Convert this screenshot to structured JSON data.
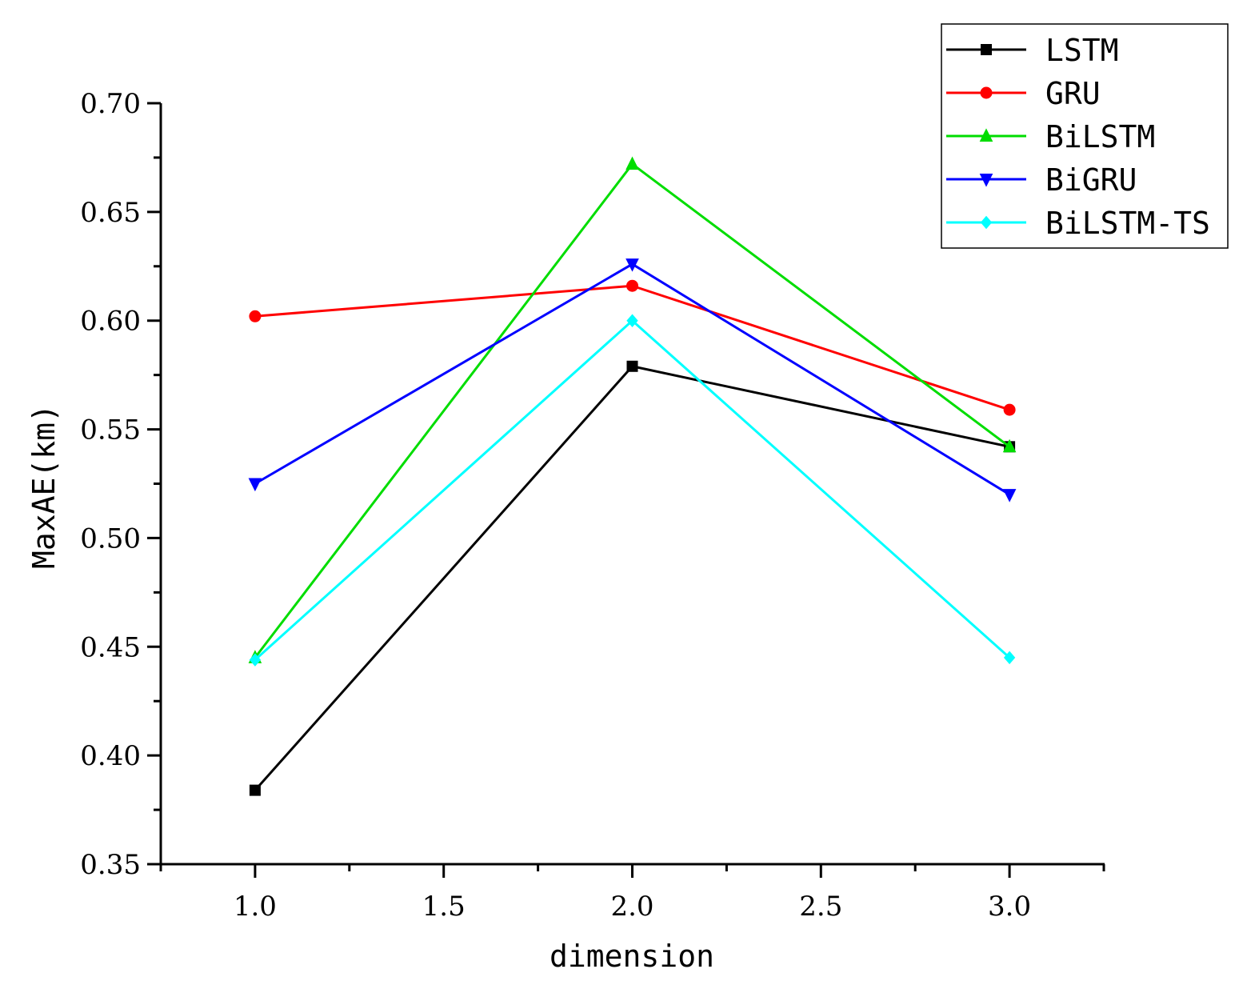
{
  "chart_data": {
    "type": "line",
    "title": "",
    "xlabel": "dimension",
    "ylabel": "MaxAE(km)",
    "xlim": [
      0.75,
      3.25
    ],
    "ylim": [
      0.35,
      0.7
    ],
    "xticks": [
      1.0,
      1.5,
      2.0,
      2.5,
      3.0
    ],
    "xtick_labels": [
      "1.0",
      "1.5",
      "2.0",
      "2.5",
      "3.0"
    ],
    "yticks": [
      0.35,
      0.4,
      0.45,
      0.5,
      0.55,
      0.6,
      0.65,
      0.7
    ],
    "ytick_labels": [
      "0.35",
      "0.40",
      "0.45",
      "0.50",
      "0.55",
      "0.60",
      "0.65",
      "0.70"
    ],
    "grid": false,
    "legend_position": "top-right, outside plot",
    "x": [
      1.0,
      2.0,
      3.0
    ],
    "series": [
      {
        "name": "LSTM",
        "color": "#000000",
        "marker": "square",
        "values": [
          0.384,
          0.579,
          0.542
        ]
      },
      {
        "name": "GRU",
        "color": "#ff0000",
        "marker": "circle",
        "values": [
          0.602,
          0.616,
          0.559
        ]
      },
      {
        "name": "BiLSTM",
        "color": "#00dd00",
        "marker": "triangle-up",
        "values": [
          0.445,
          0.672,
          0.542
        ]
      },
      {
        "name": "BiGRU",
        "color": "#0000ff",
        "marker": "triangle-down",
        "values": [
          0.525,
          0.626,
          0.52
        ]
      },
      {
        "name": "BiLSTM-TS",
        "color": "#00ffff",
        "marker": "diamond",
        "values": [
          0.444,
          0.6,
          0.445
        ]
      }
    ]
  }
}
